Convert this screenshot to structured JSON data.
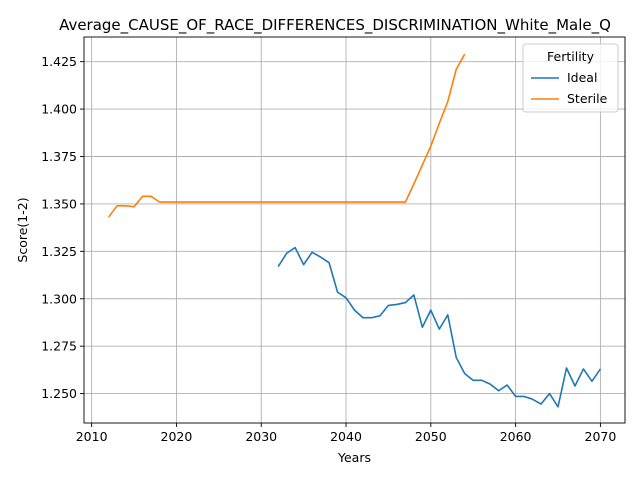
{
  "chart_data": {
    "type": "line",
    "title": "Average_CAUSE_OF_RACE_DIFFERENCES_DISCRIMINATION_White_Male_Q",
    "xlabel": "Years",
    "ylabel": "Score(1-2)",
    "xlim": [
      2009.1,
      2072.9
    ],
    "ylim": [
      1.2345,
      1.438
    ],
    "xticks": [
      2010,
      2020,
      2030,
      2040,
      2050,
      2060,
      2070
    ],
    "xtick_labels": [
      "2010",
      "2020",
      "2030",
      "2040",
      "2050",
      "2060",
      "2070"
    ],
    "yticks": [
      1.25,
      1.275,
      1.3,
      1.325,
      1.35,
      1.375,
      1.4,
      1.425
    ],
    "ytick_labels": [
      "1.250",
      "1.275",
      "1.300",
      "1.325",
      "1.350",
      "1.375",
      "1.400",
      "1.425"
    ],
    "grid": true,
    "legend": {
      "title": "Fertility",
      "placement": "top-right"
    },
    "series": [
      {
        "name": "Ideal",
        "color": "#1f77b4",
        "x": [
          2032,
          2033,
          2034,
          2035,
          2036,
          2037,
          2038,
          2039,
          2040,
          2041,
          2042,
          2043,
          2044,
          2045,
          2046,
          2047,
          2048,
          2049,
          2050,
          2051,
          2052,
          2053,
          2054,
          2055,
          2056,
          2057,
          2058,
          2059,
          2060,
          2061,
          2062,
          2063,
          2064,
          2065,
          2066,
          2067,
          2068,
          2069,
          2070
        ],
        "y": [
          1.317,
          1.324,
          1.327,
          1.318,
          1.3245,
          1.322,
          1.319,
          1.3035,
          1.3005,
          1.294,
          1.29,
          1.29,
          1.291,
          1.2965,
          1.297,
          1.298,
          1.302,
          1.285,
          1.294,
          1.284,
          1.2915,
          1.269,
          1.2605,
          1.257,
          1.257,
          1.255,
          1.2515,
          1.2545,
          1.2485,
          1.2485,
          1.247,
          1.2445,
          1.25,
          1.243,
          1.2635,
          1.254,
          1.263,
          1.2565,
          1.263
        ]
      },
      {
        "name": "Sterile",
        "color": "#ff7f0e",
        "x": [
          2012,
          2013,
          2014,
          2015,
          2016,
          2017,
          2018,
          2019,
          2020,
          2025,
          2030,
          2035,
          2040,
          2045,
          2047,
          2048,
          2049,
          2050,
          2051,
          2052,
          2053,
          2054
        ],
        "y": [
          1.343,
          1.349,
          1.349,
          1.3485,
          1.354,
          1.354,
          1.351,
          1.351,
          1.351,
          1.351,
          1.351,
          1.351,
          1.351,
          1.351,
          1.351,
          1.3605,
          1.3705,
          1.3805,
          1.3925,
          1.404,
          1.421,
          1.429
        ]
      }
    ]
  }
}
